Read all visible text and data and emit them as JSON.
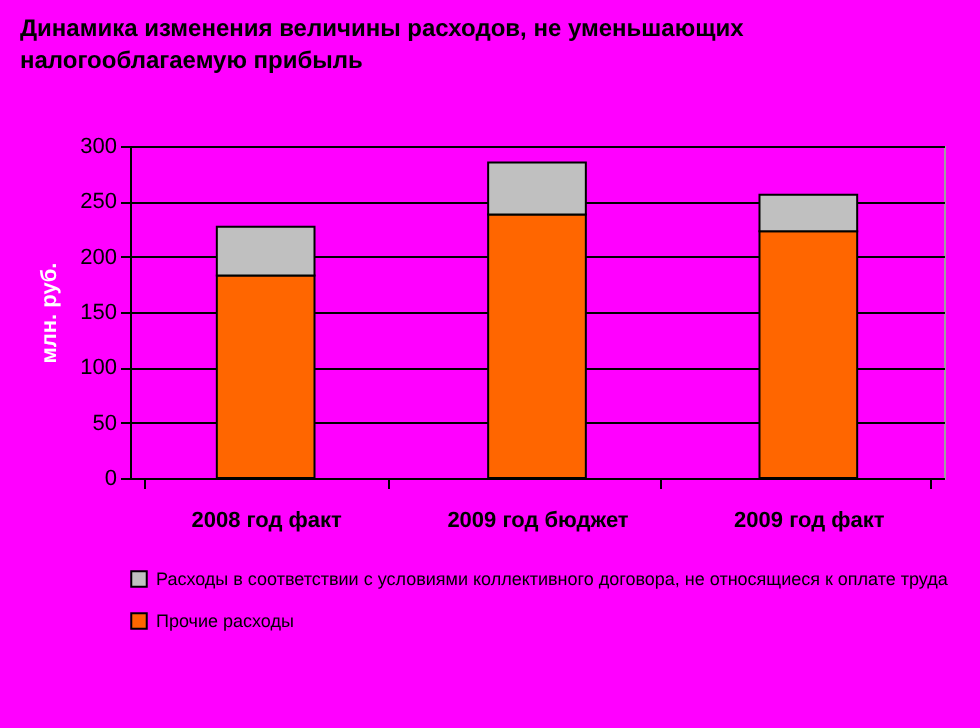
{
  "chart_data": {
    "type": "bar",
    "title": "Динамика изменения величины расходов, не уменьшающих налогооблагаемую прибыль",
    "ylabel": "млн. руб.",
    "categories": [
      "2008 год факт",
      "2009 год бюджет",
      "2009 год факт"
    ],
    "stacked": true,
    "series": [
      {
        "name": "Прочие расходы",
        "color": "#ff6600",
        "values": [
          183,
          238,
          223
        ]
      },
      {
        "name": "Расходы в соответствии с условиями коллективного договора, не относящиеся к оплате труда",
        "color": "#c0c0c0",
        "values": [
          44,
          47,
          33
        ]
      }
    ],
    "ylim": [
      0,
      300
    ],
    "yticks": [
      0,
      50,
      100,
      150,
      200,
      250,
      300
    ],
    "grid": "y",
    "legend": "bottom"
  }
}
